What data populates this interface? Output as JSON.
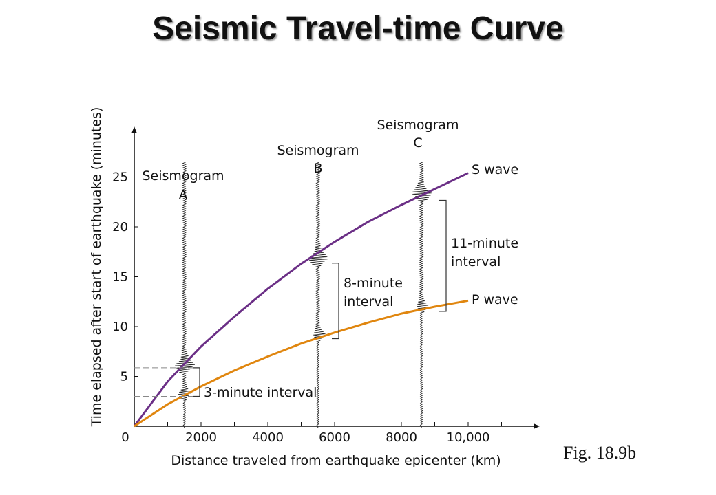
{
  "slide": {
    "title": "Seismic Travel-time Curve",
    "caption": "Fig. 18.9b"
  },
  "chart_data": {
    "type": "line",
    "xlabel": "Distance traveled from earthquake epicenter (km)",
    "ylabel": "Time elapsed after start of earthquake (minutes)",
    "xlim": [
      0,
      12000
    ],
    "ylim": [
      0,
      30
    ],
    "xticks": [
      0,
      2000,
      4000,
      6000,
      8000,
      10000
    ],
    "xtick_labels": [
      "0",
      "2000",
      "4000",
      "6000",
      "8000",
      "10,000"
    ],
    "yticks": [
      0,
      5,
      10,
      15,
      20,
      25
    ],
    "ytick_labels": [
      "0",
      "5",
      "10",
      "15",
      "20",
      "25"
    ],
    "colors": {
      "s_wave": "#6b2f86",
      "p_wave": "#e0860f",
      "axis": "#111111"
    },
    "series": [
      {
        "name": "S wave",
        "x": [
          0,
          1000,
          2000,
          3000,
          4000,
          5000,
          6000,
          7000,
          8000,
          9000,
          10000
        ],
        "y": [
          0,
          4.5,
          8.0,
          11.0,
          13.8,
          16.3,
          18.5,
          20.5,
          22.2,
          23.8,
          25.4
        ]
      },
      {
        "name": "P wave",
        "x": [
          0,
          1000,
          2000,
          3000,
          4000,
          5000,
          6000,
          7000,
          8000,
          9000,
          10000
        ],
        "y": [
          0,
          2.2,
          4.0,
          5.6,
          7.0,
          8.3,
          9.4,
          10.4,
          11.3,
          12.0,
          12.6
        ]
      }
    ],
    "seismograms": [
      {
        "label": "Seismogram",
        "letter": "A",
        "x": 1500,
        "p_arrival": 3.0,
        "s_arrival": 5.8,
        "interval_label": "3-minute interval"
      },
      {
        "label": "Seismogram",
        "letter": "B",
        "x": 5500,
        "p_arrival": 9.0,
        "s_arrival": 16.5,
        "interval_label_lines": [
          "8-minute",
          "interval"
        ]
      },
      {
        "label": "Seismogram",
        "letter": "C",
        "x": 8600,
        "p_arrival": 11.8,
        "s_arrival": 23.0,
        "interval_label_lines": [
          "11-minute",
          "interval"
        ]
      }
    ]
  }
}
